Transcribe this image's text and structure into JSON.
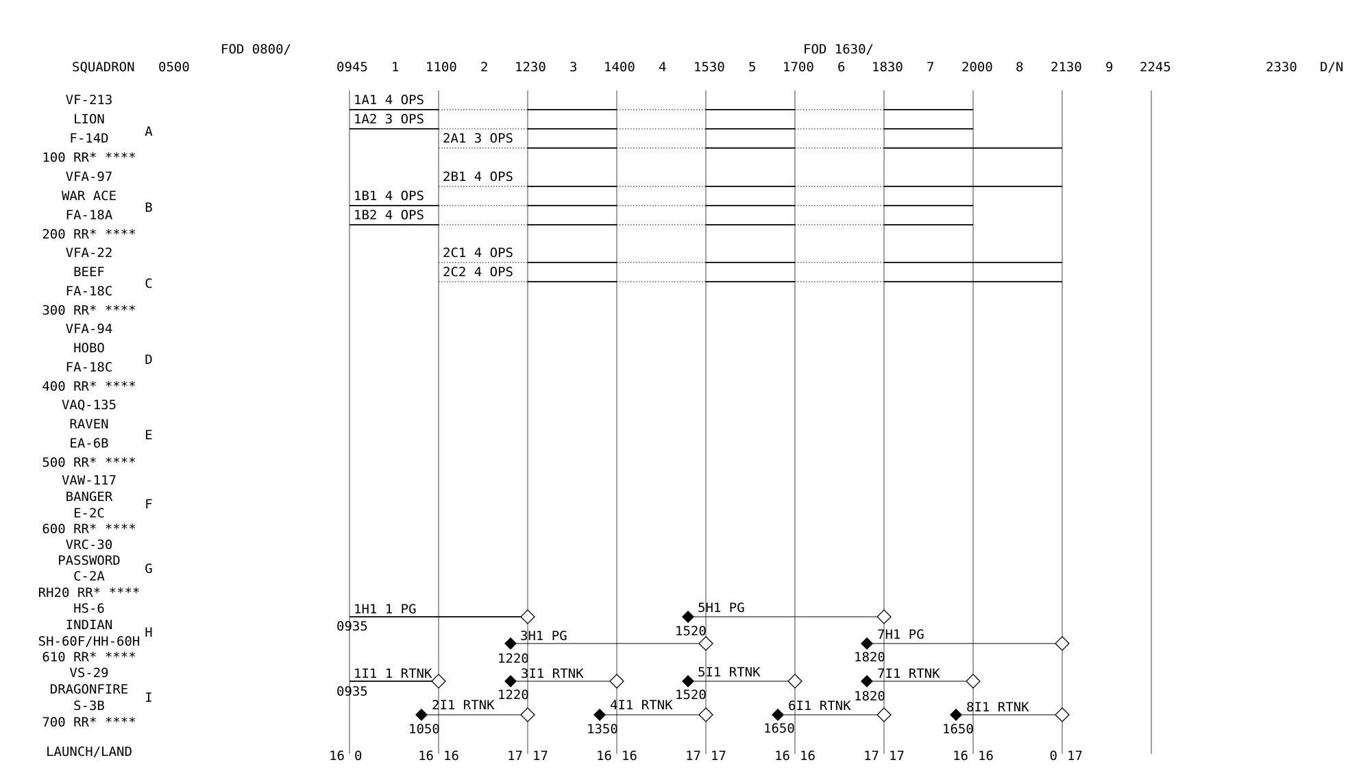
{
  "header": {
    "squadron_label": "SQUADRON",
    "dn_label": "D/N",
    "fod_labels": [
      "FOD 0800/",
      "FOD 1630/"
    ],
    "times": [
      "0500",
      "0945",
      "1100",
      "1230",
      "1400",
      "1530",
      "1700",
      "1830",
      "2000",
      "2130",
      "2245",
      "2330"
    ],
    "event_numbers": [
      "1",
      "2",
      "3",
      "4",
      "5",
      "6",
      "7",
      "8",
      "9"
    ]
  },
  "squadrons": [
    {
      "letter": "A",
      "lines": [
        "VF-213",
        "LION",
        "F-14D",
        "100 RR* ****"
      ]
    },
    {
      "letter": "B",
      "lines": [
        "VFA-97",
        "WAR ACE",
        "FA-18A",
        "200 RR* ****"
      ]
    },
    {
      "letter": "C",
      "lines": [
        "VFA-22",
        "BEEF",
        "FA-18C",
        "300 RR* ****"
      ]
    },
    {
      "letter": "D",
      "lines": [
        "VFA-94",
        "HOBO",
        "FA-18C",
        "400 RR* ****"
      ]
    },
    {
      "letter": "E",
      "lines": [
        "VAQ-135",
        "RAVEN",
        "EA-6B",
        "500 RR* ****"
      ]
    },
    {
      "letter": "F",
      "lines": [
        "VAW-117",
        "BANGER",
        "E-2C",
        "600 RR* ****"
      ]
    },
    {
      "letter": "G",
      "lines": [
        "VRC-30",
        "PASSWORD",
        "C-2A",
        "RH20 RR* ****"
      ]
    },
    {
      "letter": "H",
      "lines": [
        "HS-6",
        "INDIAN",
        "SH-60F/HH-60H",
        "610 RR* ****"
      ]
    },
    {
      "letter": "I",
      "lines": [
        "VS-29",
        "DRAGONFIRE",
        "S-3B",
        "700 RR* ****"
      ]
    }
  ],
  "fixed_wing_events": [
    {
      "label": "1A1 4 OPS",
      "pattern": "SDSDSDS"
    },
    {
      "label": "1A2 3 OPS",
      "pattern": "SDSDSDS"
    },
    {
      "label": "2A1 3 OPS",
      "pattern": "DSDSDSS"
    },
    {
      "label": "2B1 4 OPS",
      "pattern": "DSDSDSS"
    },
    {
      "label": "1B1 4 OPS",
      "pattern": "SDSDSDS"
    },
    {
      "label": "1B2 4 OPS",
      "pattern": "SDSDSDS"
    },
    {
      "label": "2C1 4 OPS",
      "pattern": "DSDSDSS"
    },
    {
      "label": "2C2 4 OPS",
      "pattern": "DSDSDSS"
    }
  ],
  "helo_events": [
    {
      "label": "1H1 1 PG",
      "launch_time": "0935"
    },
    {
      "label": "3H1 PG",
      "launch_time": "1220"
    },
    {
      "label": "5H1 PG",
      "launch_time": "1520"
    },
    {
      "label": "7H1 PG",
      "launch_time": "1820"
    }
  ],
  "tanker_events": [
    {
      "label": "1I1 1 RTNK",
      "launch_time": "0935"
    },
    {
      "label": "2I1 RTNK",
      "launch_time": "1050"
    },
    {
      "label": "3I1 RTNK",
      "launch_time": "1220"
    },
    {
      "label": "4I1 RTNK",
      "launch_time": "1350"
    },
    {
      "label": "5I1 RTNK",
      "launch_time": "1520"
    },
    {
      "label": "6I1 RTNK",
      "launch_time": "1650"
    },
    {
      "label": "7I1 RTNK",
      "launch_time": "1820"
    },
    {
      "label": "8I1 RTNK",
      "launch_time": "1650"
    }
  ],
  "launch_land": {
    "label": "LAUNCH/LAND",
    "pairs": [
      [
        "16",
        "0"
      ],
      [
        "16",
        "16"
      ],
      [
        "17",
        "17"
      ],
      [
        "16",
        "16"
      ],
      [
        "17",
        "17"
      ],
      [
        "16",
        "16"
      ],
      [
        "17",
        "17"
      ],
      [
        "16",
        "16"
      ],
      [
        "0",
        "17"
      ]
    ]
  },
  "colors": {
    "ink": "#000000",
    "grid_line": "#6e6e6e",
    "background": "#ffffff"
  },
  "icon_names": {
    "launch_marker": "filled-diamond-icon",
    "recovery_marker": "hollow-diamond-icon"
  }
}
